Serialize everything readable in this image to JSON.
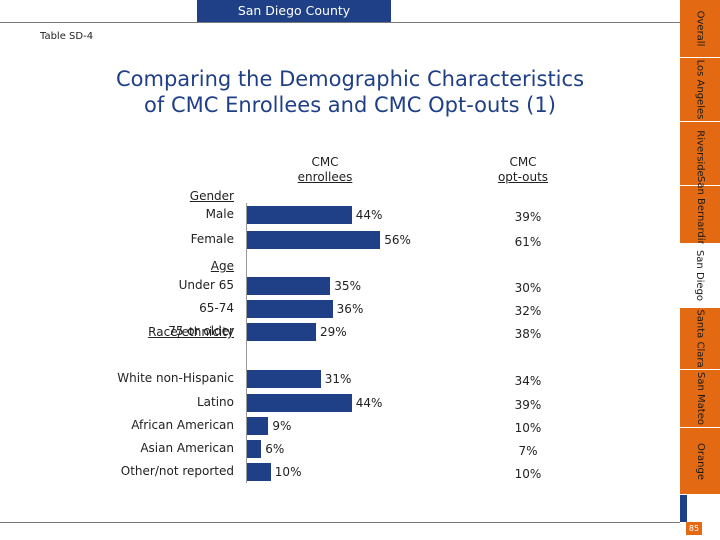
{
  "header": {
    "county": "San Diego County",
    "table_id": "Table SD-4"
  },
  "title": {
    "line1": "Comparing the Demographic Characteristics",
    "line2": "of CMC Enrollees and CMC Opt-outs (1)"
  },
  "columns": {
    "enrollees_line1": "CMC",
    "enrollees_line2": "enrollees",
    "optouts_line1": "CMC",
    "optouts_line2": "opt-outs"
  },
  "groups": {
    "gender": "Gender",
    "age": "Age",
    "race": "Race/ethnicity"
  },
  "chart_data": {
    "type": "bar",
    "orientation": "horizontal",
    "title": "Comparing the Demographic Characteristics of CMC Enrollees and CMC Opt-outs (1)",
    "xlim": [
      0,
      100
    ],
    "unit": "%",
    "categories": [
      "Male",
      "Female",
      "Under 65",
      "65-74",
      "75 or older",
      "White non-Hispanic",
      "Latino",
      "African American",
      "Asian American",
      "Other/not reported"
    ],
    "series": [
      {
        "name": "CMC enrollees",
        "values": [
          44,
          56,
          35,
          36,
          29,
          31,
          44,
          9,
          6,
          10
        ],
        "labels": [
          "44%",
          "56%",
          "35%",
          "36%",
          "29%",
          "31%",
          "44%",
          "9%",
          "6%",
          "10%"
        ]
      },
      {
        "name": "CMC opt-outs",
        "values": [
          39,
          61,
          30,
          32,
          38,
          34,
          39,
          10,
          7,
          10
        ],
        "labels": [
          "39%",
          "61%",
          "30%",
          "32%",
          "38%",
          "34%",
          "39%",
          "10%",
          "7%",
          "10%"
        ]
      }
    ]
  },
  "sidebar": {
    "tabs": [
      {
        "label": "Overall",
        "color": "#e36a12"
      },
      {
        "label": "Los Angeles",
        "color": "#e36a12"
      },
      {
        "label": "Riverside",
        "color": "#e36a12"
      },
      {
        "label": "San Bernardino",
        "color": "#e36a12"
      },
      {
        "label": "San Diego",
        "color": "#ffffff"
      },
      {
        "label": "Santa Clara",
        "color": "#e36a12"
      },
      {
        "label": "San Mateo",
        "color": "#e36a12"
      },
      {
        "label": "Orange",
        "color": "#e36a12"
      }
    ],
    "page_number": "85"
  }
}
